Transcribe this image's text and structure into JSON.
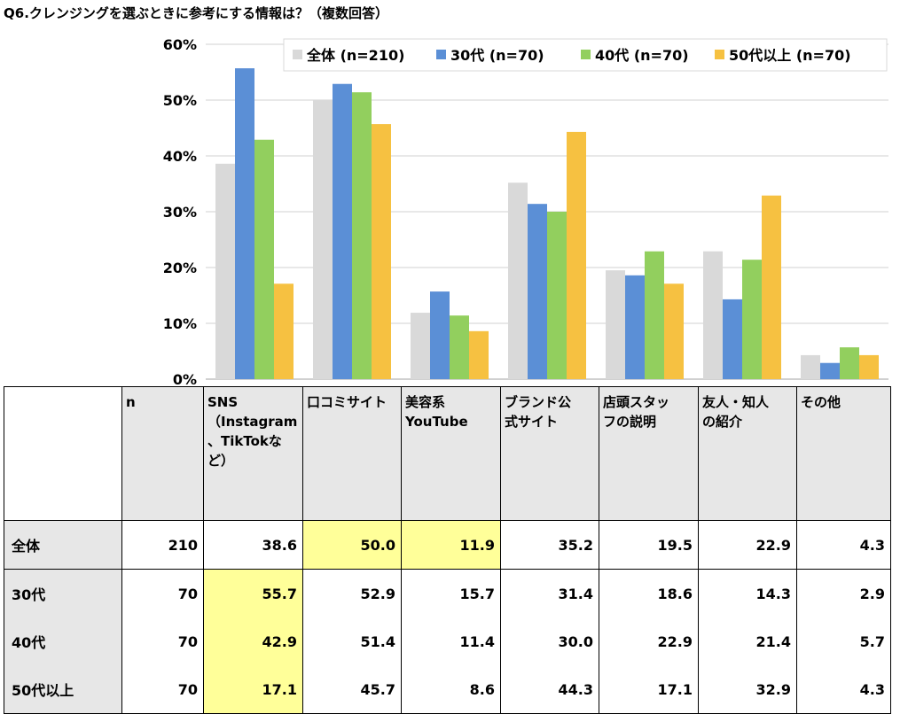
{
  "title": "Q6.クレンジングを選ぶときに参考にする情報は？（複数回答）",
  "colors": {
    "all": "#d9d9d9",
    "g30": "#5b8fd6",
    "g40": "#92cf5e",
    "g50": "#f6c141",
    "highlight": "#ffff99"
  },
  "chart_data": {
    "type": "bar",
    "categories": [
      "SNS（Instagram、TikTokなど）",
      "口コミサイト",
      "美容系YouTube",
      "ブランド公式サイト",
      "店頭スタッフの説明",
      "友人・知人の紹介",
      "その他"
    ],
    "ylim": [
      0,
      60
    ],
    "yticks": [
      "0%",
      "10%",
      "20%",
      "30%",
      "40%",
      "50%",
      "60%"
    ],
    "legend_position": "top-right",
    "series": [
      {
        "name": "全体 (n=210)",
        "values": [
          38.6,
          50.0,
          11.9,
          35.2,
          19.5,
          22.9,
          4.3
        ]
      },
      {
        "name": "30代 (n=70)",
        "values": [
          55.7,
          52.9,
          15.7,
          31.4,
          18.6,
          14.3,
          2.9
        ]
      },
      {
        "name": "40代 (n=70)",
        "values": [
          42.9,
          51.4,
          11.4,
          30.0,
          22.9,
          21.4,
          5.7
        ]
      },
      {
        "name": "50代以上 (n=70)",
        "values": [
          17.1,
          45.7,
          8.6,
          44.3,
          17.1,
          32.9,
          4.3
        ]
      }
    ]
  },
  "table": {
    "n_header": "n",
    "headers": [
      "SNS\n（Instagram\n、TikTokな\nど）",
      "口コミサイト",
      "美容系\nYouTube",
      "ブランド公\n式サイト",
      "店頭スタッ\nフの説明",
      "友人・知人\nの紹介",
      "その他"
    ],
    "rows": [
      {
        "label": "全体",
        "n": "210",
        "values": [
          "38.6",
          "50.0",
          "11.9",
          "35.2",
          "19.5",
          "22.9",
          "4.3"
        ]
      },
      {
        "label": "30代",
        "n": "70",
        "values": [
          "55.7",
          "52.9",
          "15.7",
          "31.4",
          "18.6",
          "14.3",
          "2.9"
        ]
      },
      {
        "label": "40代",
        "n": "70",
        "values": [
          "42.9",
          "51.4",
          "11.4",
          "30.0",
          "22.9",
          "21.4",
          "5.7"
        ]
      },
      {
        "label": "50代以上",
        "n": "70",
        "values": [
          "17.1",
          "45.7",
          "8.6",
          "44.3",
          "17.1",
          "32.9",
          "4.3"
        ]
      }
    ],
    "highlighted": [
      [
        0,
        2
      ],
      [
        0,
        3
      ],
      [
        1,
        1
      ],
      [
        2,
        1
      ],
      [
        3,
        1
      ]
    ]
  }
}
